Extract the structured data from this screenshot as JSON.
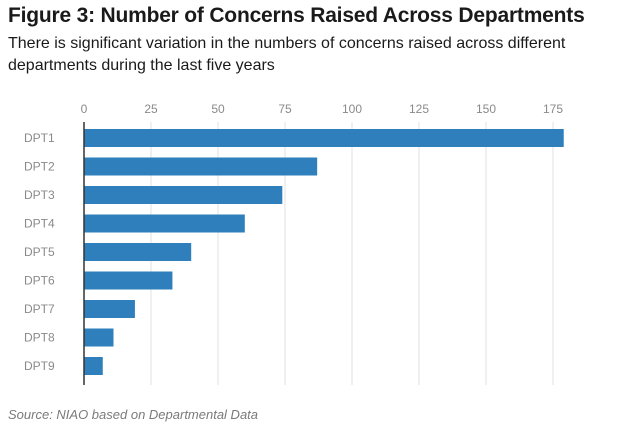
{
  "header": {
    "title": "Figure 3: Number of Concerns Raised Across Departments",
    "subtitle": "There is significant variation in the numbers of concerns raised across different departments during the last five years"
  },
  "footer": {
    "source": "Source: NIAO based on Departmental Data"
  },
  "colors": {
    "bar": "#2e7fbc",
    "grid": "#e2e2e2",
    "axis": "#333333"
  },
  "chart_data": {
    "type": "bar",
    "orientation": "horizontal",
    "categories": [
      "DPT1",
      "DPT2",
      "DPT3",
      "DPT4",
      "DPT5",
      "DPT6",
      "DPT7",
      "DPT8",
      "DPT9"
    ],
    "values": [
      179,
      87,
      74,
      60,
      40,
      33,
      19,
      11,
      7
    ],
    "xlim": [
      0,
      180
    ],
    "xticks": [
      0,
      25,
      50,
      75,
      100,
      125,
      150,
      175
    ],
    "axis_position": "top",
    "grid": true,
    "legend": "none"
  }
}
